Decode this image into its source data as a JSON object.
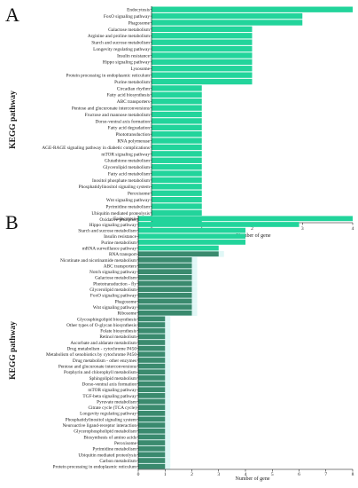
{
  "chart_data": [
    {
      "panel": "A",
      "type": "bar",
      "orientation": "horizontal",
      "ylabel": "KEGG pathway",
      "xlabel": "Number of gene",
      "xlim": [
        0,
        4
      ],
      "xticks": [
        0,
        1,
        2,
        3,
        4
      ],
      "bar_color": "#22d49b",
      "categories": [
        "Endocytosis",
        "FoxO signaling pathway",
        "Phagosome",
        "Galactose metabolism",
        "Arginine and proline metabolism",
        "Starch and sucrose metabolism",
        "Longevity regulating pathway",
        "Insulin resistance",
        "Hippo signaling pathway",
        "Lysosome",
        "Protein processing in endoplasmic reticulum",
        "Purine metabolism",
        "Circadian rhythm",
        "Fatty acid biosynthesis",
        "ABC transporters",
        "Pentose and glucuronate interconversions",
        "Fructose and mannose metabolism",
        "Dorso-ventral axis formation",
        "Fatty acid degradation",
        "Phototransduction",
        "RNA polymerase",
        "AGE-RAGE signaling pathway in diabetic complications",
        "mTOR signaling pathway",
        "Glutathione metabolism",
        "Glycerolipid metabolism",
        "Fatty acid metabolism",
        "Inositol phosphate metabolism",
        "Phosphatidylinositol signaling system",
        "Peroxisome",
        "Wnt signaling pathway",
        "Pyrimidine metabolism",
        "Ubiquitin mediated proteolysis",
        "Oxidative phosphorylation"
      ],
      "values": [
        4,
        3,
        3,
        2,
        2,
        2,
        2,
        2,
        2,
        2,
        2,
        2,
        1,
        1,
        1,
        1,
        1,
        1,
        1,
        1,
        1,
        1,
        1,
        1,
        1,
        1,
        1,
        1,
        1,
        1,
        1,
        1,
        1
      ]
    },
    {
      "panel": "B",
      "type": "bar",
      "orientation": "horizontal",
      "ylabel": "KEGG pathway",
      "xlabel": "Number of gene",
      "xlim": [
        0,
        8
      ],
      "xticks": [
        0,
        1,
        2,
        3,
        4,
        5,
        6,
        7,
        8
      ],
      "bar_color": "#22d49b",
      "highlight_color": "#3a8a6e",
      "categories": [
        "Endocytosis",
        "Hippo signaling pathway",
        "Starch and sucrose metabolism",
        "Insulin resistance",
        "Purine metabolism",
        "mRNA surveillance pathway",
        "RNA transport",
        "Nicotinate and nicotinamide metabolism",
        "ABC transporters",
        "Notch signaling pathway",
        "Galactose metabolism",
        "Phototransduction - fly",
        "Glycerolipid metabolism",
        "FoxO signaling pathway",
        "Phagosome",
        "Wnt signaling pathway",
        "Ribosome",
        "Glycosphingolipid biosynthesis",
        "Other types of O-glycan biosynthesis",
        "Folate biosynthesis",
        "Retinol metabolism",
        "Ascorbate and aldarate metabolism",
        "Drug metabolism - cytochrome P450",
        "Metabolism of xenobiotics by cytochrome P450",
        "Drug metabolism - other enzymes",
        "Pentose and glucuronate interconversions",
        "Porphyrin and chlorophyll metabolism",
        "Sphingolipid metabolism",
        "Dorso-ventral axis formation",
        "mTOR signaling pathway",
        "TGF-beta signaling pathway",
        "Pyruvate metabolism",
        "Citrate cycle (TCA cycle)",
        "Longevity regulating pathway",
        "Phosphatidylinositol signaling system",
        "Neuroactive ligand-receptor interaction",
        "Glycerophospholipid metabolism",
        "Biosynthesis of amino acids",
        "Peroxisome",
        "Pyrimidine metabolism",
        "Ubiquitin mediated proteolysis",
        "Carbon metabolism",
        "Protein processing in endoplasmic reticulum"
      ],
      "values": [
        8,
        6,
        4,
        4,
        4,
        3,
        3,
        2,
        2,
        2,
        2,
        2,
        2,
        2,
        2,
        2,
        2,
        1,
        1,
        1,
        1,
        1,
        1,
        1,
        1,
        1,
        1,
        1,
        1,
        1,
        1,
        1,
        1,
        1,
        1,
        1,
        1,
        1,
        1,
        1,
        1,
        1,
        1
      ],
      "highlighted": [
        false,
        false,
        false,
        false,
        false,
        false,
        true,
        true,
        true,
        true,
        true,
        true,
        true,
        true,
        true,
        true,
        true,
        true,
        true,
        true,
        true,
        true,
        true,
        true,
        true,
        true,
        true,
        true,
        true,
        true,
        true,
        true,
        true,
        true,
        true,
        true,
        true,
        true,
        true,
        true,
        true,
        true,
        true
      ]
    }
  ]
}
